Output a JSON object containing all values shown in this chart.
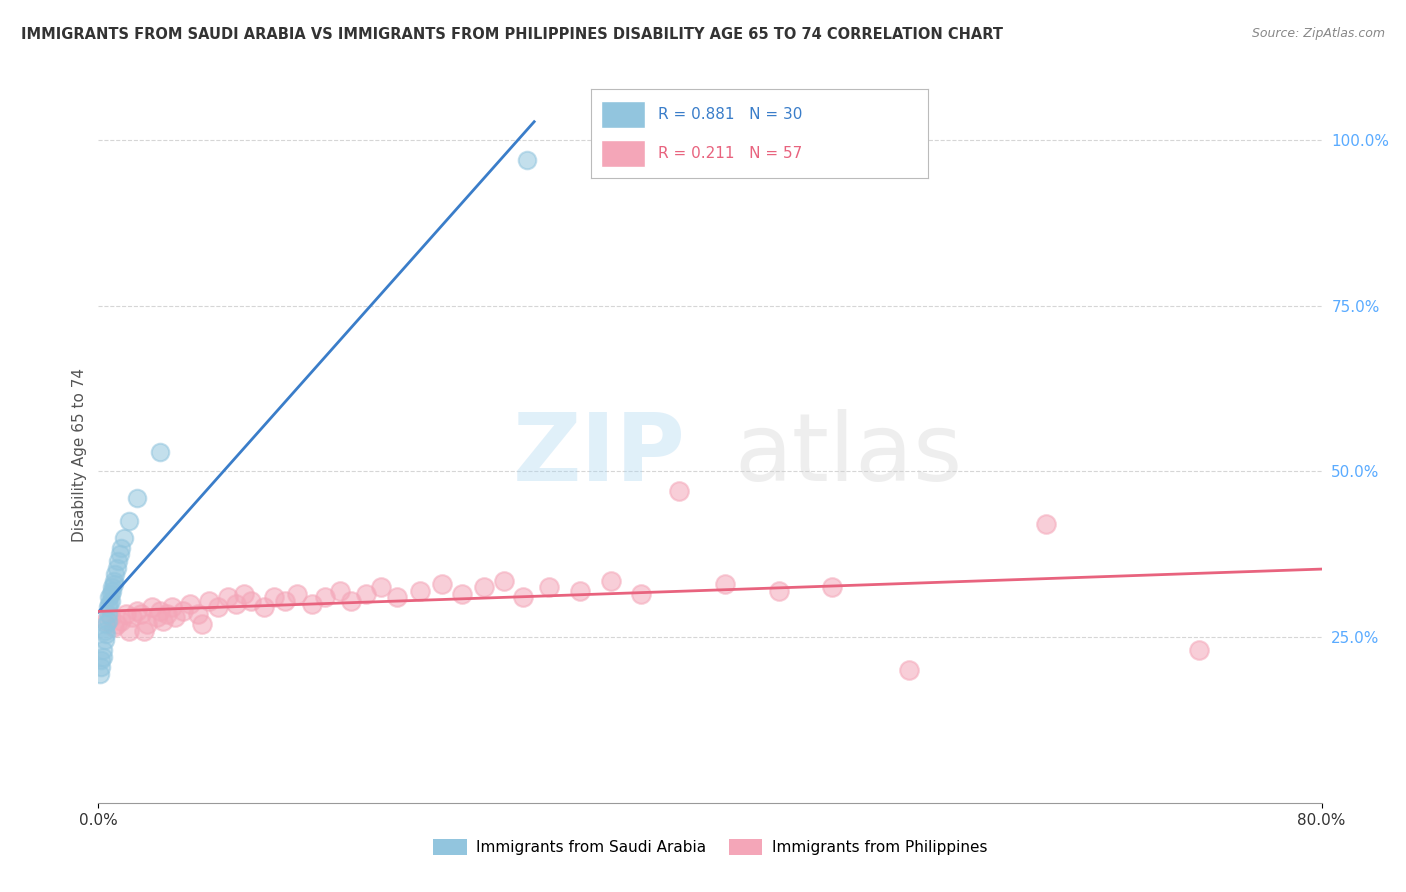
{
  "title": "IMMIGRANTS FROM SAUDI ARABIA VS IMMIGRANTS FROM PHILIPPINES DISABILITY AGE 65 TO 74 CORRELATION CHART",
  "source": "Source: ZipAtlas.com",
  "ylabel": "Disability Age 65 to 74",
  "legend1_R": "0.881",
  "legend1_N": "30",
  "legend2_R": "0.211",
  "legend2_N": "57",
  "blue_color": "#92c5de",
  "pink_color": "#f4a6b8",
  "blue_line_color": "#3a7dc9",
  "pink_line_color": "#e8637e",
  "legend_label1": "Immigrants from Saudi Arabia",
  "legend_label2": "Immigrants from Philippines",
  "watermark_zip": "ZIP",
  "watermark_atlas": "atlas",
  "saudi_x": [
    0.001,
    0.002,
    0.002,
    0.003,
    0.003,
    0.004,
    0.004,
    0.005,
    0.005,
    0.006,
    0.006,
    0.006,
    0.007,
    0.007,
    0.008,
    0.008,
    0.009,
    0.009,
    0.01,
    0.01,
    0.011,
    0.012,
    0.013,
    0.014,
    0.015,
    0.017,
    0.02,
    0.025,
    0.04,
    0.28
  ],
  "saudi_y": [
    0.195,
    0.205,
    0.215,
    0.22,
    0.23,
    0.245,
    0.26,
    0.255,
    0.27,
    0.275,
    0.285,
    0.295,
    0.3,
    0.31,
    0.305,
    0.315,
    0.32,
    0.325,
    0.33,
    0.335,
    0.345,
    0.355,
    0.365,
    0.375,
    0.385,
    0.4,
    0.425,
    0.46,
    0.53,
    0.97
  ],
  "phil_x": [
    0.005,
    0.008,
    0.01,
    0.012,
    0.015,
    0.018,
    0.02,
    0.022,
    0.025,
    0.028,
    0.03,
    0.032,
    0.035,
    0.038,
    0.04,
    0.042,
    0.045,
    0.048,
    0.05,
    0.055,
    0.06,
    0.065,
    0.068,
    0.072,
    0.078,
    0.085,
    0.09,
    0.095,
    0.1,
    0.108,
    0.115,
    0.122,
    0.13,
    0.14,
    0.148,
    0.158,
    0.165,
    0.175,
    0.185,
    0.195,
    0.21,
    0.225,
    0.238,
    0.252,
    0.265,
    0.278,
    0.295,
    0.315,
    0.335,
    0.355,
    0.38,
    0.41,
    0.445,
    0.48,
    0.53,
    0.62,
    0.72
  ],
  "phil_y": [
    0.275,
    0.28,
    0.265,
    0.27,
    0.275,
    0.285,
    0.26,
    0.28,
    0.29,
    0.285,
    0.26,
    0.27,
    0.295,
    0.28,
    0.29,
    0.275,
    0.285,
    0.295,
    0.28,
    0.29,
    0.3,
    0.285,
    0.27,
    0.305,
    0.295,
    0.31,
    0.3,
    0.315,
    0.305,
    0.295,
    0.31,
    0.305,
    0.315,
    0.3,
    0.31,
    0.32,
    0.305,
    0.315,
    0.325,
    0.31,
    0.32,
    0.33,
    0.315,
    0.325,
    0.335,
    0.31,
    0.325,
    0.32,
    0.335,
    0.315,
    0.47,
    0.33,
    0.32,
    0.325,
    0.2,
    0.42,
    0.23
  ],
  "xlim": [
    0.0,
    0.8
  ],
  "ylim": [
    0.0,
    1.05
  ],
  "right_ytick_vals": [
    0.25,
    0.5,
    0.75,
    1.0
  ],
  "right_ytick_labels": [
    "25.0%",
    "50.0%",
    "75.0%",
    "100.0%"
  ],
  "background_color": "#ffffff",
  "grid_color": "#cccccc"
}
